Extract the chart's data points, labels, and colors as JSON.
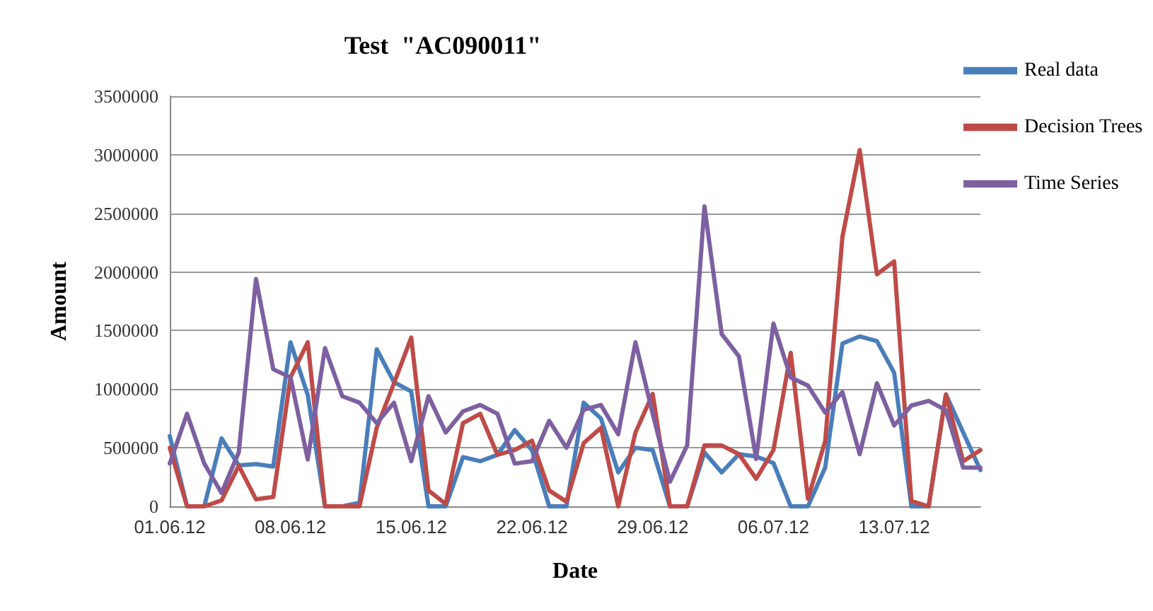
{
  "chart_data": {
    "type": "line",
    "title": "Test  \"AC090011\"",
    "xlabel": "Date",
    "ylabel": "Amount",
    "categories": [
      "01.06.12",
      null,
      null,
      null,
      null,
      null,
      null,
      "08.06.12",
      null,
      null,
      null,
      null,
      null,
      null,
      "15.06.12",
      null,
      null,
      null,
      null,
      null,
      null,
      "22.06.12",
      null,
      null,
      null,
      null,
      null,
      null,
      "29.06.12",
      null,
      null,
      null,
      null,
      null,
      null,
      "06.07.12",
      null,
      null,
      null,
      null,
      null,
      null,
      "13.07.12",
      null,
      null,
      null,
      null,
      null
    ],
    "series": [
      {
        "name": "Real data",
        "color": "#4a7ebb",
        "values": [
          600000,
          0,
          0,
          580000,
          350000,
          360000,
          340000,
          1400000,
          950000,
          0,
          0,
          30000,
          1340000,
          1060000,
          980000,
          0,
          0,
          420000,
          385000,
          440000,
          650000,
          480000,
          0,
          0,
          885000,
          750000,
          290000,
          500000,
          480000,
          0,
          0,
          460000,
          290000,
          445000,
          425000,
          370000,
          0,
          0,
          330000,
          1390000,
          1450000,
          1410000,
          1140000,
          0,
          0,
          955000,
          630000,
          310000
        ]
      },
      {
        "name": "Decision Trees",
        "color": "#be4b48",
        "values": [
          500000,
          0,
          0,
          50000,
          346000,
          60000,
          80000,
          1100000,
          1400000,
          0,
          0,
          0,
          670000,
          1050000,
          1440000,
          135000,
          20000,
          710000,
          790000,
          440000,
          480000,
          560000,
          135000,
          40000,
          540000,
          670000,
          0,
          630000,
          960000,
          0,
          0,
          520000,
          520000,
          445000,
          235000,
          480000,
          1310000,
          65000,
          555000,
          2300000,
          3040000,
          1980000,
          2090000,
          45000,
          0,
          955000,
          385000,
          480000
        ]
      },
      {
        "name": "Time Series",
        "color": "#7d60a0",
        "values": [
          365000,
          790000,
          365000,
          115000,
          460000,
          1940000,
          1170000,
          1100000,
          400000,
          1350000,
          940000,
          885000,
          710000,
          885000,
          385000,
          940000,
          630000,
          810000,
          865000,
          790000,
          365000,
          385000,
          730000,
          500000,
          825000,
          865000,
          615000,
          1400000,
          790000,
          210000,
          520000,
          2560000,
          1470000,
          1280000,
          405000,
          1560000,
          1100000,
          1030000,
          800000,
          975000,
          445000,
          1050000,
          690000,
          860000,
          900000,
          820000,
          330000,
          330000
        ]
      }
    ],
    "ylim": [
      0,
      3500000
    ],
    "yticks": [
      0,
      500000,
      1000000,
      1500000,
      2000000,
      2500000,
      3000000,
      3500000
    ],
    "grid": "y",
    "legend": "top right",
    "marker": "none",
    "line_style": "solid"
  }
}
